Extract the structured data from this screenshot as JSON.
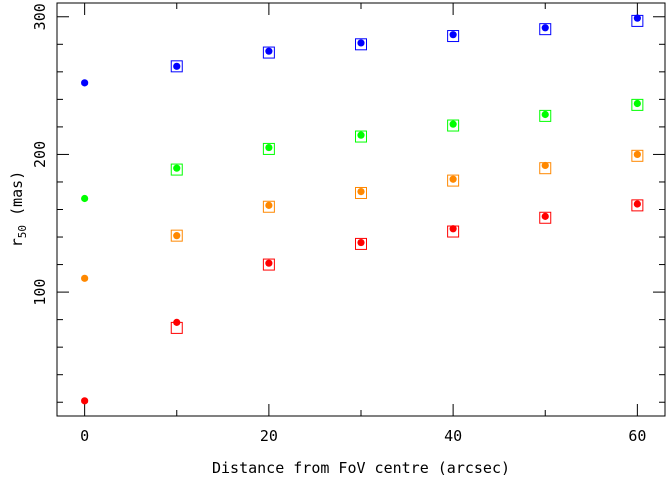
{
  "chart_data": {
    "type": "scatter",
    "title": "",
    "xlabel": "Distance from FoV centre (arcsec)",
    "ylabel": {
      "main": "r",
      "subscript": "50",
      "unit": " (mas)"
    },
    "xlim": [
      -3,
      63
    ],
    "ylim": [
      10,
      310
    ],
    "xticks": [
      0,
      20,
      40,
      60
    ],
    "yticks": [
      100,
      200,
      300
    ],
    "grid": false,
    "legend": "none",
    "series": [
      {
        "color": "#0000ff",
        "points_dot": [
          [
            0,
            252
          ],
          [
            10,
            264
          ],
          [
            20,
            275
          ],
          [
            30,
            281
          ],
          [
            40,
            287
          ],
          [
            50,
            292
          ],
          [
            60,
            299
          ]
        ],
        "points_square": [
          [
            10,
            264
          ],
          [
            20,
            274
          ],
          [
            30,
            280
          ],
          [
            40,
            286
          ],
          [
            50,
            291
          ],
          [
            60,
            297
          ]
        ]
      },
      {
        "color": "#00ff00",
        "points_dot": [
          [
            0,
            168
          ],
          [
            10,
            190
          ],
          [
            20,
            205
          ],
          [
            30,
            214
          ],
          [
            40,
            222
          ],
          [
            50,
            229
          ],
          [
            60,
            237
          ]
        ],
        "points_square": [
          [
            10,
            189
          ],
          [
            20,
            204
          ],
          [
            30,
            213
          ],
          [
            40,
            221
          ],
          [
            50,
            228
          ],
          [
            60,
            236
          ]
        ]
      },
      {
        "color": "#ff8800",
        "points_dot": [
          [
            0,
            110
          ],
          [
            10,
            141
          ],
          [
            20,
            163
          ],
          [
            30,
            173
          ],
          [
            40,
            182
          ],
          [
            50,
            192
          ],
          [
            60,
            200
          ]
        ],
        "points_square": [
          [
            10,
            141
          ],
          [
            20,
            162
          ],
          [
            30,
            172
          ],
          [
            40,
            181
          ],
          [
            50,
            190
          ],
          [
            60,
            199
          ]
        ]
      },
      {
        "color": "#ff0000",
        "points_dot": [
          [
            0,
            21
          ],
          [
            10,
            78
          ],
          [
            20,
            121
          ],
          [
            30,
            136
          ],
          [
            40,
            146
          ],
          [
            50,
            155
          ],
          [
            60,
            164
          ]
        ],
        "points_square": [
          [
            10,
            74
          ],
          [
            20,
            120
          ],
          [
            30,
            135
          ],
          [
            40,
            144
          ],
          [
            50,
            154
          ],
          [
            60,
            163
          ]
        ]
      }
    ]
  }
}
